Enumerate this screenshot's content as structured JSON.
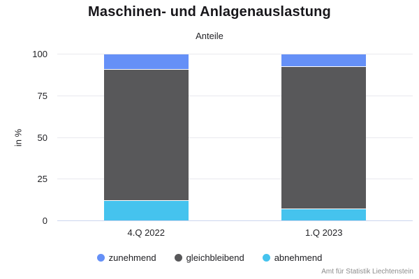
{
  "header": {
    "title": "Maschinen- und Anlagenauslastung",
    "subtitle": "Anteile"
  },
  "footer": {
    "source": "Amt für Statistik Liechtenstein"
  },
  "chart_data": {
    "type": "bar",
    "stacked": true,
    "title": "Maschinen- und Anlagenauslastung",
    "subtitle": "Anteile",
    "xlabel": "",
    "ylabel": "in %",
    "ylim": [
      0,
      100
    ],
    "yticks": [
      0,
      25,
      50,
      75,
      100
    ],
    "grid": true,
    "legend_position": "bottom",
    "categories": [
      "4.Q 2022",
      "1.Q 2023"
    ],
    "series": [
      {
        "name": "zunehmend",
        "color": "#6590F7",
        "values": [
          9,
          7
        ]
      },
      {
        "name": "gleichbleibend",
        "color": "#58585A",
        "values": [
          79,
          86
        ]
      },
      {
        "name": "abnehmend",
        "color": "#45C3EE",
        "values": [
          12,
          7
        ]
      }
    ]
  },
  "colors": {
    "gridline": "#e9e9ee",
    "zero_line": "#ccd5ee",
    "background": "#ffffff",
    "title_text": "#17161a",
    "axis_text": "#222226",
    "source_text": "#8c8c8c"
  }
}
